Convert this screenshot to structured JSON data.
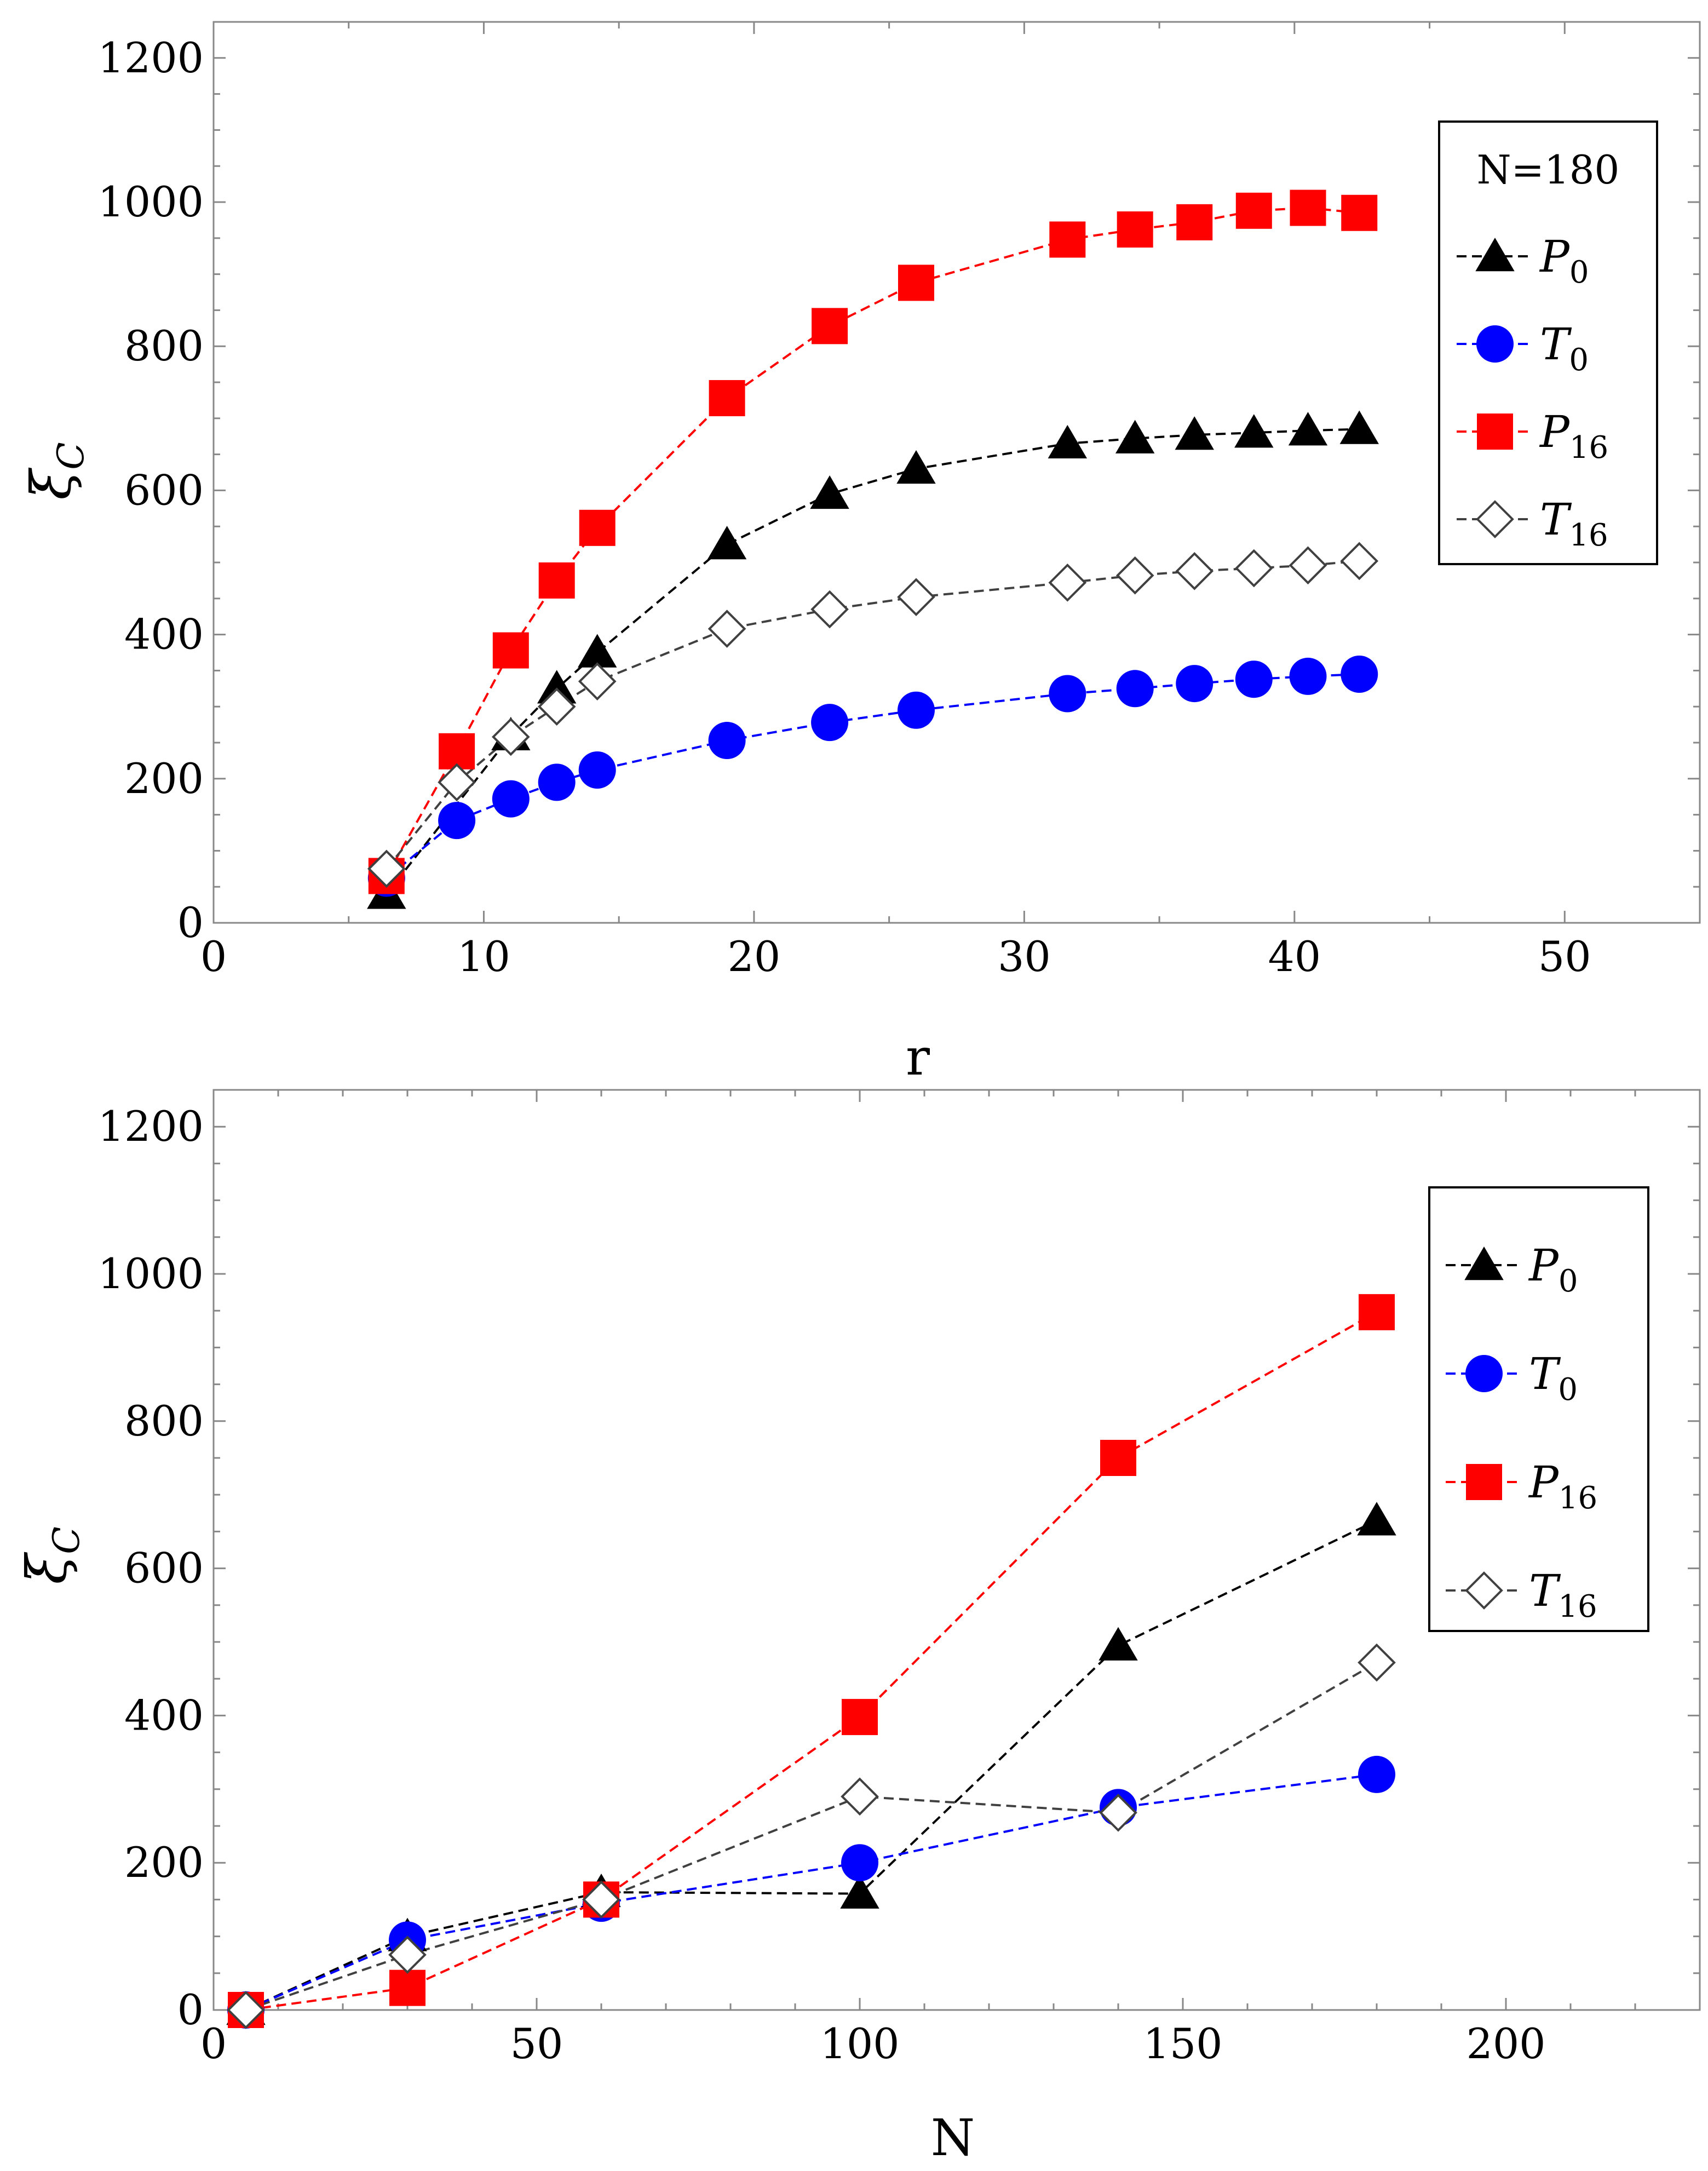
{
  "chart_data": [
    {
      "type": "line",
      "id": "top",
      "xlabel": "r",
      "ylabel": "ξ",
      "ylabel_sub": "C",
      "xlim": [
        0,
        55
      ],
      "ylim": [
        0,
        1250
      ],
      "xticks": [
        0,
        10,
        20,
        30,
        40,
        50
      ],
      "yticks": [
        0,
        200,
        400,
        600,
        800,
        1000,
        1200
      ],
      "legend_title": "N=180",
      "series": [
        {
          "name": "P",
          "sub": "0",
          "color": "#000000",
          "marker": "triangle",
          "x": [
            6.4,
            11,
            12.7,
            14.2,
            19,
            22.8,
            26,
            31.6,
            34.1,
            36.3,
            38.5,
            40.5,
            42.4
          ],
          "y": [
            40,
            260,
            325,
            375,
            525,
            595,
            630,
            665,
            672,
            677,
            680,
            683,
            685
          ]
        },
        {
          "name": "T",
          "sub": "0",
          "color": "#0000ff",
          "marker": "circle",
          "x": [
            6.4,
            9,
            11,
            12.7,
            14.2,
            19,
            22.8,
            26,
            31.6,
            34.1,
            36.3,
            38.5,
            40.5,
            42.4
          ],
          "y": [
            62,
            142,
            172,
            195,
            212,
            253,
            278,
            295,
            318,
            325,
            332,
            338,
            342,
            345
          ]
        },
        {
          "name": "P",
          "sub": "16",
          "color": "#ff0000",
          "marker": "square",
          "x": [
            6.4,
            9,
            11,
            12.7,
            14.2,
            19,
            22.8,
            26,
            31.6,
            34.1,
            36.3,
            38.5,
            40.5,
            42.4
          ],
          "y": [
            65,
            238,
            378,
            475,
            548,
            728,
            828,
            888,
            948,
            962,
            972,
            988,
            992,
            985
          ]
        },
        {
          "name": "T",
          "sub": "16",
          "color": "#404040",
          "marker": "diamond",
          "x": [
            6.4,
            9,
            11,
            12.7,
            14.2,
            19,
            22.8,
            26,
            31.6,
            34.1,
            36.3,
            38.5,
            40.5,
            42.4
          ],
          "y": [
            75,
            195,
            258,
            300,
            335,
            408,
            435,
            452,
            472,
            482,
            488,
            492,
            496,
            502
          ]
        }
      ]
    },
    {
      "type": "line",
      "id": "bottom",
      "xlabel": "N",
      "ylabel": "ξ",
      "ylabel_sub": "C",
      "xlim": [
        0,
        230
      ],
      "ylim": [
        0,
        1250
      ],
      "xticks": [
        0,
        50,
        100,
        150,
        200
      ],
      "yticks": [
        0,
        200,
        400,
        600,
        800,
        1000,
        1200
      ],
      "series": [
        {
          "name": "P",
          "sub": "0",
          "color": "#000000",
          "marker": "triangle",
          "x": [
            5,
            30,
            60,
            100,
            140,
            180
          ],
          "y": [
            0,
            100,
            160,
            158,
            495,
            665
          ]
        },
        {
          "name": "T",
          "sub": "0",
          "color": "#0000ff",
          "marker": "circle",
          "x": [
            5,
            30,
            60,
            100,
            140,
            180
          ],
          "y": [
            0,
            95,
            145,
            200,
            275,
            320
          ]
        },
        {
          "name": "P",
          "sub": "16",
          "color": "#ff0000",
          "marker": "square",
          "x": [
            5,
            30,
            60,
            100,
            140,
            180
          ],
          "y": [
            0,
            30,
            150,
            398,
            750,
            948
          ]
        },
        {
          "name": "T",
          "sub": "16",
          "color": "#404040",
          "marker": "diamond",
          "x": [
            5,
            30,
            60,
            100,
            140,
            180
          ],
          "y": [
            0,
            75,
            150,
            290,
            268,
            472
          ]
        }
      ]
    }
  ]
}
